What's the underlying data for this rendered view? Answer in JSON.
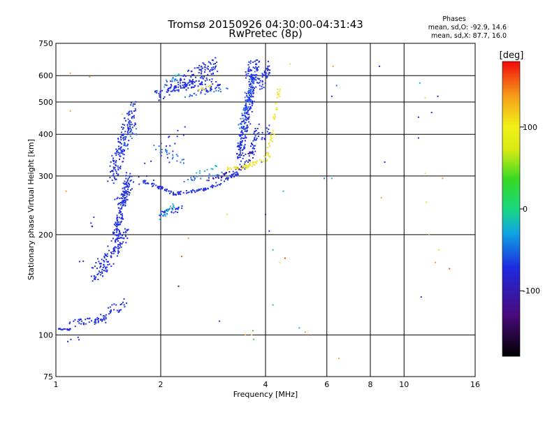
{
  "chart_data": {
    "type": "scatter",
    "title": "Tromsø 20150926 04:30:00-04:31:43",
    "subtitle": "RwPretec (8p)",
    "xlabel": "Frequency [MHz]",
    "ylabel": "Stationary phase Virtual Height [km]",
    "x_scale": "log",
    "y_scale": "log",
    "xlim": [
      1,
      16
    ],
    "ylim": [
      75,
      750
    ],
    "x_ticks": [
      "1",
      "2",
      "4",
      "6",
      "8",
      "10",
      "16"
    ],
    "x_tick_values": [
      1,
      2,
      4,
      6,
      8,
      10,
      16
    ],
    "y_ticks": [
      "75",
      "100",
      "200",
      "300",
      "400",
      "500",
      "600",
      "750"
    ],
    "y_tick_values": [
      75,
      100,
      200,
      300,
      400,
      500,
      600,
      750
    ],
    "grid": true,
    "colorbar": {
      "label": "[deg]",
      "range": [
        -180,
        180
      ],
      "ticks": [
        "100",
        "0",
        "-100"
      ],
      "tick_values": [
        100,
        0,
        -100
      ]
    },
    "stats": {
      "title": "Phases",
      "line1": "mean, sd,O: -92.9, 14.6",
      "line2": "mean, sd,X:  87.7, 16.0"
    },
    "series": [
      {
        "color": "#1e2fe6",
        "segments": [
          {
            "f0": 1.0,
            "f1": 1.1,
            "h0": 104,
            "h1": 104,
            "n": 22,
            "jit": 0.006
          },
          {
            "f0": 1.1,
            "f1": 1.42,
            "h0": 108,
            "h1": 112,
            "n": 45,
            "jit": 0.025
          },
          {
            "f0": 1.35,
            "f1": 1.58,
            "h0": 112,
            "h1": 125,
            "n": 30,
            "jit": 0.04
          },
          {
            "f0": 1.3,
            "f1": 1.58,
            "h0": 150,
            "h1": 200,
            "n": 140,
            "jit": 0.06
          },
          {
            "f0": 1.48,
            "f1": 1.62,
            "h0": 200,
            "h1": 300,
            "n": 130,
            "jit": 0.05
          },
          {
            "f0": 1.45,
            "f1": 1.68,
            "h0": 300,
            "h1": 480,
            "n": 170,
            "jit": 0.06
          },
          {
            "f0": 1.5,
            "f1": 1.64,
            "h0": 240,
            "h1": 290,
            "n": 30,
            "jit": 0.05
          },
          {
            "f0": 1.78,
            "f1": 2.2,
            "h0": 290,
            "h1": 265,
            "n": 45,
            "jit": 0.012
          },
          {
            "f0": 2.2,
            "f1": 2.75,
            "h0": 265,
            "h1": 275,
            "n": 40,
            "jit": 0.01
          },
          {
            "f0": 2.75,
            "f1": 3.4,
            "h0": 275,
            "h1": 310,
            "n": 40,
            "jit": 0.015
          },
          {
            "f0": 3.4,
            "f1": 3.6,
            "h0": 310,
            "h1": 340,
            "n": 10,
            "jit": 0.02
          },
          {
            "f0": 2.0,
            "f1": 2.3,
            "h0": 230,
            "h1": 240,
            "n": 30,
            "jit": 0.02
          },
          {
            "f0": 1.9,
            "f1": 2.9,
            "h0": 520,
            "h1": 650,
            "n": 130,
            "jit": 0.05
          },
          {
            "f0": 2.1,
            "f1": 2.9,
            "h0": 540,
            "h1": 580,
            "n": 40,
            "jit": 0.02
          },
          {
            "f0": 2.5,
            "f1": 2.95,
            "h0": 535,
            "h1": 560,
            "n": 25,
            "jit": 0.015
          },
          {
            "f0": 2.2,
            "f1": 2.6,
            "h0": 560,
            "h1": 580,
            "n": 25,
            "jit": 0.02
          },
          {
            "f0": 3.35,
            "f1": 3.78,
            "h0": 340,
            "h1": 650,
            "n": 240,
            "jit": 0.05
          },
          {
            "f0": 3.6,
            "f1": 3.8,
            "h0": 330,
            "h1": 420,
            "n": 40,
            "jit": 0.03
          },
          {
            "f0": 3.55,
            "f1": 3.65,
            "h0": 600,
            "h1": 650,
            "n": 20,
            "jit": 0.03
          },
          {
            "f0": 3.85,
            "f1": 4.15,
            "h0": 560,
            "h1": 650,
            "n": 40,
            "jit": 0.04
          },
          {
            "f0": 3.9,
            "f1": 4.1,
            "h0": 380,
            "h1": 420,
            "n": 12,
            "jit": 0.03
          },
          {
            "f0": 1.8,
            "f1": 2.3,
            "h0": 300,
            "h1": 400,
            "n": 20,
            "jit": 0.1
          },
          {
            "f0": 1.25,
            "f1": 1.3,
            "h0": 210,
            "h1": 230,
            "n": 4,
            "jit": 0.03
          },
          {
            "f0": 1.08,
            "f1": 1.18,
            "h0": 96,
            "h1": 98,
            "n": 4,
            "jit": 0.01
          },
          {
            "f0": 1.15,
            "f1": 1.2,
            "h0": 165,
            "h1": 165,
            "n": 2,
            "jit": 0.01
          }
        ],
        "points": [
          [
            8.5,
            640
          ],
          [
            8.8,
            330
          ],
          [
            12.5,
            520
          ],
          [
            11.2,
            130
          ],
          [
            11.0,
            390
          ],
          [
            12.0,
            465
          ],
          [
            2.95,
            110
          ],
          [
            4.0,
            230
          ],
          [
            4.1,
            205
          ],
          [
            6.2,
            520
          ],
          [
            11.0,
            450
          ]
        ]
      },
      {
        "color": "#2d6ff0",
        "segments": [
          {
            "f0": 1.9,
            "f1": 2.35,
            "h0": 370,
            "h1": 330,
            "n": 22,
            "jit": 0.02
          },
          {
            "f0": 2.3,
            "f1": 3.0,
            "h0": 290,
            "h1": 305,
            "n": 20,
            "jit": 0.012
          },
          {
            "f0": 2.35,
            "f1": 3.1,
            "h0": 520,
            "h1": 545,
            "n": 20,
            "jit": 0.01
          },
          {
            "f0": 3.4,
            "f1": 3.7,
            "h0": 420,
            "h1": 620,
            "n": 50,
            "jit": 0.04
          },
          {
            "f0": 1.55,
            "f1": 1.7,
            "h0": 360,
            "h1": 420,
            "n": 20,
            "jit": 0.05
          }
        ],
        "points": [
          [
            3.9,
            330
          ],
          [
            5.9,
            295
          ],
          [
            6.4,
            560
          ]
        ]
      },
      {
        "color": "#3a1fb0",
        "segments": [
          {
            "f0": 2.95,
            "f1": 3.45,
            "h0": 300,
            "h1": 320,
            "n": 15,
            "jit": 0.01
          },
          {
            "f0": 3.5,
            "f1": 3.8,
            "h0": 345,
            "h1": 365,
            "n": 10,
            "jit": 0.01
          },
          {
            "f0": 2.7,
            "f1": 3.0,
            "h0": 290,
            "h1": 298,
            "n": 8,
            "jit": 0.01
          }
        ],
        "points": [
          [
            2.75,
            296
          ],
          [
            3.05,
            302
          ]
        ]
      },
      {
        "color": "#16b7d9",
        "segments": [
          {
            "f0": 2.0,
            "f1": 2.2,
            "h0": 225,
            "h1": 245,
            "n": 20,
            "jit": 0.02
          },
          {
            "f0": 2.5,
            "f1": 2.9,
            "h0": 305,
            "h1": 320,
            "n": 10,
            "jit": 0.01
          },
          {
            "f0": 2.0,
            "f1": 2.3,
            "h0": 560,
            "h1": 600,
            "n": 12,
            "jit": 0.03
          }
        ],
        "points": [
          [
            4.5,
            270
          ],
          [
            6.2,
            295
          ],
          [
            11.1,
            570
          ],
          [
            4.2,
            180
          ],
          [
            4.2,
            123
          ],
          [
            5.0,
            105
          ]
        ]
      },
      {
        "color": "#f0e42a",
        "segments": [
          {
            "f0": 3.1,
            "f1": 3.6,
            "h0": 315,
            "h1": 320,
            "n": 30,
            "jit": 0.01
          },
          {
            "f0": 3.5,
            "f1": 4.1,
            "h0": 320,
            "h1": 340,
            "n": 30,
            "jit": 0.015
          },
          {
            "f0": 4.0,
            "f1": 4.25,
            "h0": 340,
            "h1": 420,
            "n": 20,
            "jit": 0.02
          },
          {
            "f0": 4.2,
            "f1": 4.4,
            "h0": 430,
            "h1": 550,
            "n": 20,
            "jit": 0.02
          },
          {
            "f0": 2.55,
            "f1": 2.8,
            "h0": 540,
            "h1": 560,
            "n": 10,
            "jit": 0.01
          }
        ],
        "points": [
          [
            4.7,
            650
          ],
          [
            1.55,
            460
          ],
          [
            3.1,
            230
          ],
          [
            4.4,
            165
          ],
          [
            11.5,
            515
          ],
          [
            11.5,
            305
          ],
          [
            12.6,
            180
          ],
          [
            3.65,
            100
          ],
          [
            11.6,
            250
          ]
        ]
      },
      {
        "color": "#f2a12a",
        "segments": [],
        "points": [
          [
            1.1,
            610
          ],
          [
            1.25,
            595
          ],
          [
            1.1,
            470
          ],
          [
            6.25,
            640
          ],
          [
            6.5,
            85
          ],
          [
            8.6,
            258
          ],
          [
            11.8,
            200
          ],
          [
            12.3,
            165
          ],
          [
            2.4,
            195
          ],
          [
            3.5,
            100
          ],
          [
            5.2,
            102
          ],
          [
            12.9,
            295
          ],
          [
            1.07,
            270
          ]
        ]
      },
      {
        "color": "#e8531e",
        "segments": [],
        "points": [
          [
            2.3,
            172
          ],
          [
            13.5,
            158
          ],
          [
            4.55,
            170
          ],
          [
            5.3,
            100
          ]
        ]
      },
      {
        "color": "#3dd63a",
        "segments": [],
        "points": [
          [
            3.7,
            97
          ],
          [
            3.68,
            103
          ]
        ]
      },
      {
        "color": "#2a2a60",
        "segments": [],
        "points": [
          [
            2.25,
            140
          ]
        ]
      }
    ]
  }
}
